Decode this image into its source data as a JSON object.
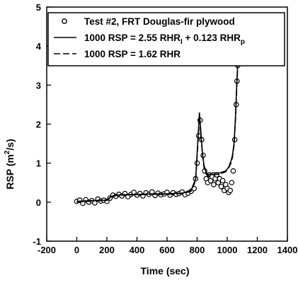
{
  "chart_data": {
    "type": "scatter",
    "title": "",
    "xlabel": "Time (sec)",
    "ylabel": "RSP (m²/s)",
    "ylabel_parts": {
      "base": "RSP (m",
      "sup": "2",
      "tail": "/s)"
    },
    "xlim": [
      -200,
      1400
    ],
    "ylim": [
      -1,
      5
    ],
    "x_ticks": [
      -200,
      0,
      200,
      400,
      600,
      800,
      1000,
      1200,
      1400
    ],
    "x_tick_labels": [
      "-200",
      "0",
      "200",
      "400",
      "600",
      "800",
      "1000",
      "1200",
      "1400"
    ],
    "y_ticks": [
      -1,
      0,
      1,
      2,
      3,
      4,
      5
    ],
    "y_tick_labels": [
      "-1",
      "0",
      "1",
      "2",
      "3",
      "4",
      "5"
    ],
    "grid": false,
    "legend_position": "top",
    "legend": {
      "test": "Test #2, FRT Douglas-fir plywood",
      "fit1": {
        "prefix": "1000 RSP = 2.55 RHR",
        "sub1": "I",
        "mid": " + 0.123 RHR",
        "sub2": "p"
      },
      "fit2": "1000 RSP = 1.62 RHR"
    },
    "series": [
      {
        "name": "Test #2, FRT Douglas-fir plywood",
        "style": "open-circle",
        "x": [
          0,
          20,
          40,
          60,
          80,
          100,
          120,
          140,
          160,
          180,
          200,
          220,
          240,
          260,
          280,
          300,
          320,
          340,
          360,
          380,
          400,
          420,
          440,
          460,
          480,
          500,
          520,
          540,
          560,
          580,
          600,
          620,
          640,
          660,
          680,
          700,
          720,
          740,
          760,
          780,
          790,
          800,
          810,
          820,
          830,
          840,
          850,
          860,
          870,
          880,
          890,
          900,
          910,
          920,
          930,
          940,
          950,
          960,
          970,
          980,
          990,
          1000,
          1010,
          1020,
          1030,
          1040,
          1050,
          1060,
          1065,
          1070
        ],
        "y": [
          0.02,
          0.05,
          -0.03,
          0.06,
          0.0,
          0.04,
          -0.02,
          0.08,
          0.03,
          0.05,
          0.02,
          0.1,
          0.18,
          0.15,
          0.2,
          0.16,
          0.22,
          0.14,
          0.2,
          0.25,
          0.18,
          0.22,
          0.16,
          0.24,
          0.2,
          0.26,
          0.17,
          0.23,
          0.19,
          0.21,
          0.25,
          0.18,
          0.24,
          0.2,
          0.22,
          0.26,
          0.19,
          0.23,
          0.28,
          0.35,
          0.6,
          1.0,
          1.7,
          2.1,
          1.6,
          1.2,
          0.8,
          0.6,
          0.5,
          0.7,
          0.55,
          0.65,
          0.45,
          0.6,
          0.7,
          0.5,
          0.6,
          0.4,
          0.55,
          0.3,
          0.45,
          0.35,
          0.25,
          0.3,
          0.5,
          0.8,
          1.6,
          2.5,
          3.1,
          3.5
        ]
      },
      {
        "name": "1000 RSP = 2.55 RHR_I + 0.123 RHR_p",
        "style": "solid",
        "x": [
          0,
          100,
          200,
          230,
          260,
          300,
          400,
          500,
          600,
          700,
          760,
          790,
          805,
          815,
          825,
          835,
          845,
          860,
          880,
          900,
          950,
          990,
          1010,
          1025,
          1035,
          1045,
          1055,
          1062,
          1070
        ],
        "y": [
          0.02,
          0.04,
          0.05,
          0.15,
          0.18,
          0.19,
          0.2,
          0.21,
          0.21,
          0.23,
          0.3,
          0.6,
          1.6,
          2.3,
          1.8,
          1.3,
          0.95,
          0.75,
          0.7,
          0.75,
          0.75,
          0.8,
          0.9,
          1.05,
          1.2,
          1.5,
          2.2,
          2.9,
          3.6
        ]
      },
      {
        "name": "1000 RSP = 1.62 RHR",
        "style": "dashed",
        "x": [
          0,
          100,
          200,
          230,
          260,
          300,
          400,
          500,
          600,
          700,
          760,
          790,
          805,
          815,
          825,
          835,
          845,
          860,
          880,
          900,
          950,
          990,
          1010,
          1025,
          1035,
          1045,
          1055,
          1062,
          1070
        ],
        "y": [
          0.0,
          0.03,
          0.04,
          0.13,
          0.17,
          0.18,
          0.19,
          0.2,
          0.2,
          0.22,
          0.28,
          0.55,
          1.5,
          2.2,
          1.7,
          1.25,
          0.9,
          0.72,
          0.66,
          0.7,
          0.72,
          0.78,
          0.88,
          1.0,
          1.15,
          1.45,
          2.1,
          2.8,
          3.5
        ]
      }
    ]
  }
}
